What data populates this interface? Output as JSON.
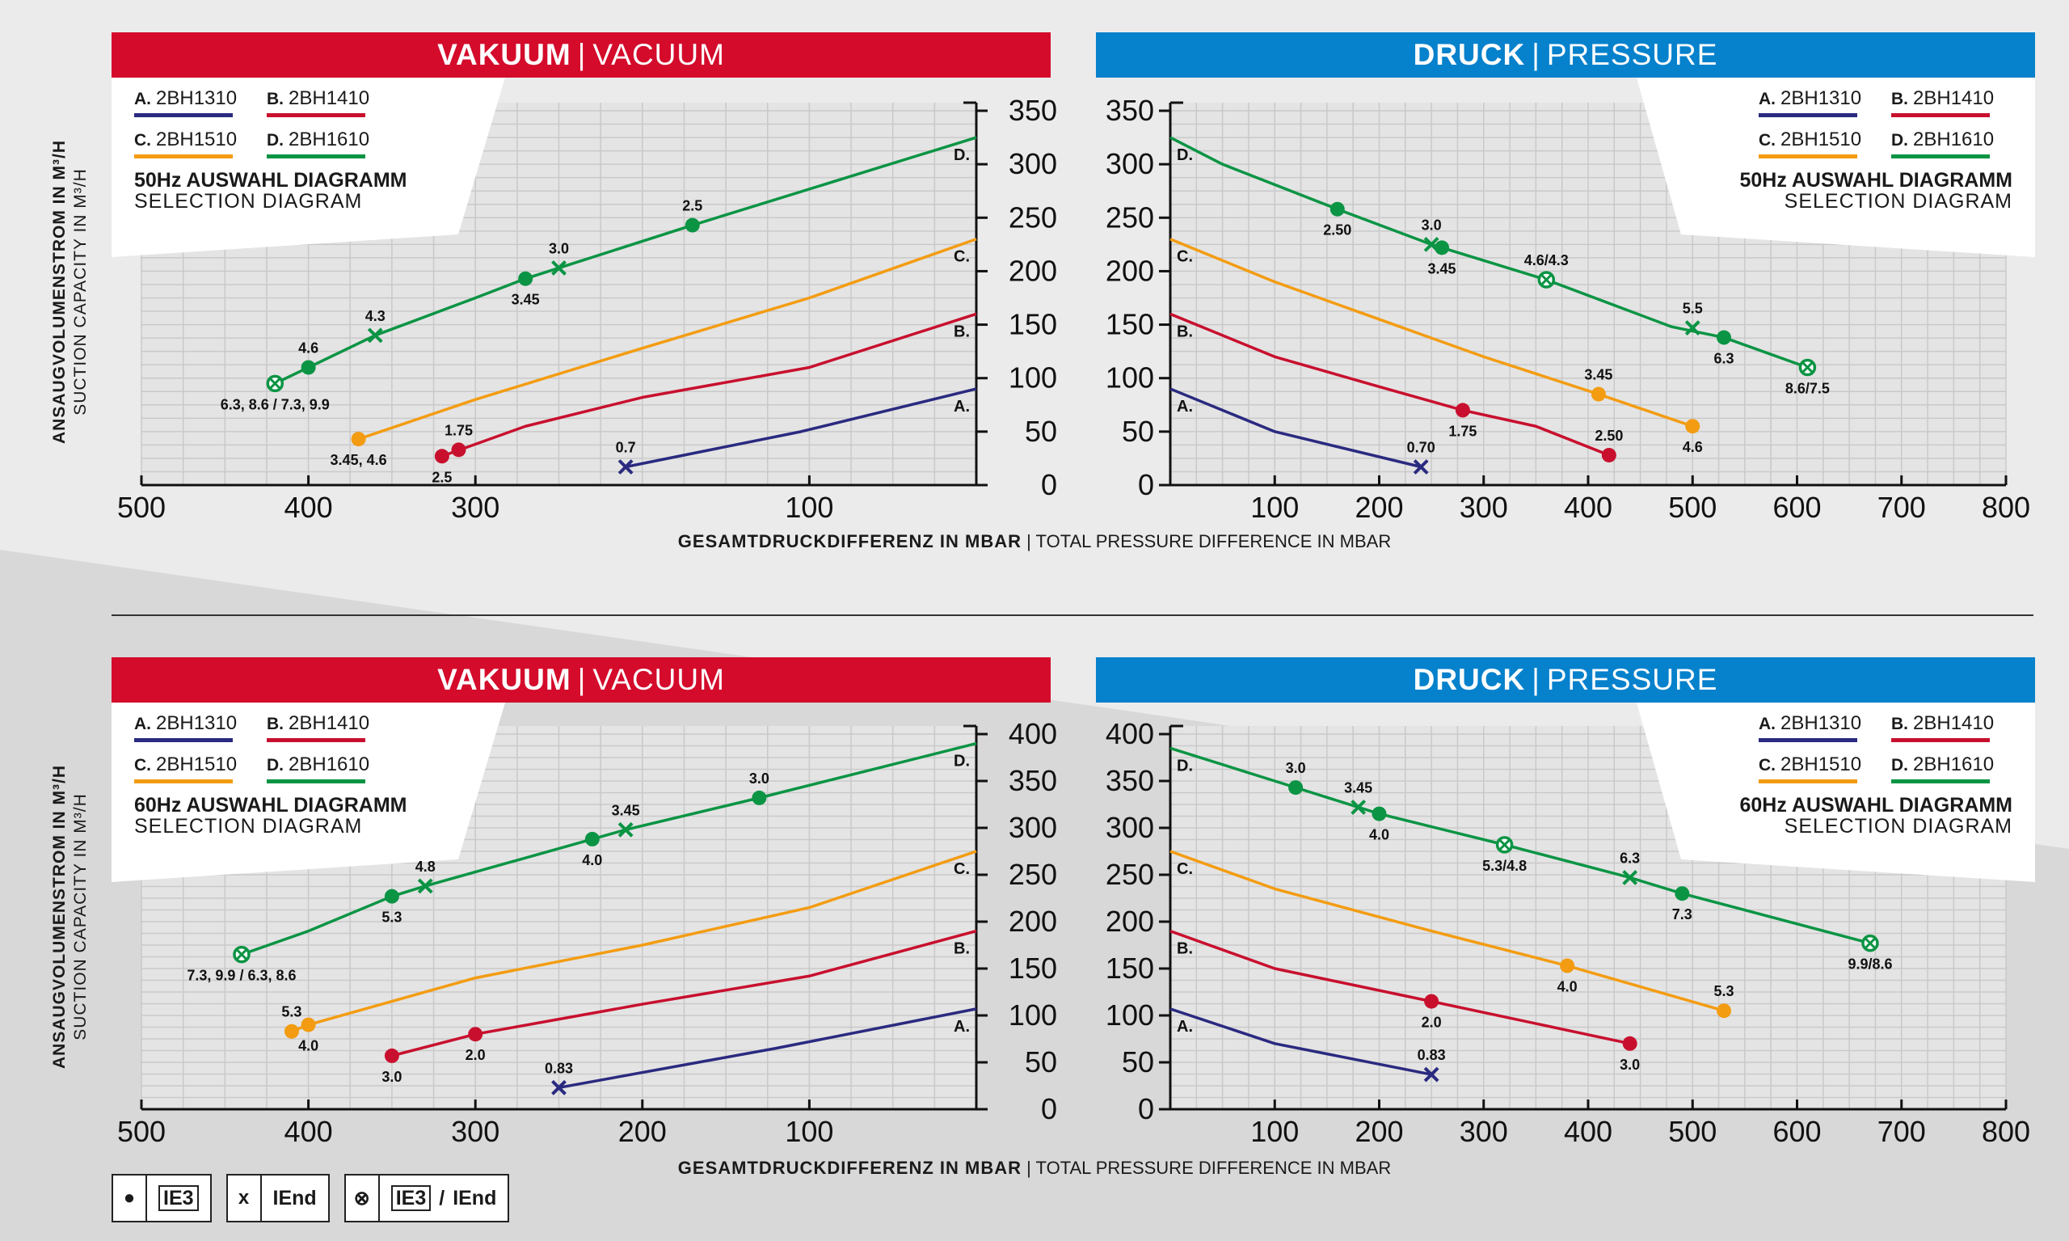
{
  "colors": {
    "A": "#2a2a80",
    "B": "#c8102e",
    "C": "#f39c12",
    "D": "#0b9444",
    "vacuum_header": "#d40b2b",
    "pressure_header": "#0681cc"
  },
  "vacuum_header": {
    "bold": "VAKUUM",
    "sep": "|",
    "en": "VACUUM"
  },
  "pressure_header": {
    "bold": "DRUCK",
    "sep": "|",
    "en": "PRESSURE"
  },
  "legend": {
    "items": [
      {
        "letter": "A.",
        "name": "2BH1310"
      },
      {
        "letter": "B.",
        "name": "2BH1410"
      },
      {
        "letter": "C.",
        "name": "2BH1510"
      },
      {
        "letter": "D.",
        "name": "2BH1610"
      }
    ],
    "title_50": "50Hz AUSWAHL DIAGRAMM",
    "title_60": "60Hz AUSWAHL DIAGRAMM",
    "subtitle": "SELECTION DIAGRAM"
  },
  "y_axis_label": {
    "de": "ANSAUGVOLUMENSTROM IN M³/H",
    "en": "SUCTION CAPACITY IN M³/H"
  },
  "x_axis_label": {
    "de": "GESAMTDRUCKDIFFERENZ IN MBAR",
    "sep": "|",
    "en": "TOTAL PRESSURE DIFFERENCE IN MBAR"
  },
  "key": {
    "dot_symbol": "●",
    "dot_label": "IE3",
    "x_symbol": "x",
    "x_label": "IEnd",
    "both_symbol": "⊗",
    "both_label_1": "IE3",
    "both_sep": "/",
    "both_label_2": "IEnd"
  },
  "chart_data": [
    {
      "id": "vac50",
      "type": "line",
      "title": "VAKUUM | VACUUM – 50Hz",
      "xlabel": "GESAMTDRUCKDIFFERENZ IN MBAR",
      "ylabel": "ANSAUGVOLUMENSTROM IN M³/H",
      "xlim": [
        500,
        0
      ],
      "ylim": [
        0,
        350
      ],
      "x_ticks": [
        500,
        400,
        300,
        100
      ],
      "y_ticks": [
        0,
        50,
        100,
        150,
        200,
        250,
        300,
        350
      ],
      "series": [
        {
          "name": "A. 2BH1310",
          "key": "A",
          "x": [
            210,
            105,
            0
          ],
          "y": [
            17,
            50,
            90
          ],
          "end_label": "A."
        },
        {
          "name": "B. 2BH1410",
          "key": "B",
          "x": [
            320,
            270,
            200,
            100,
            0
          ],
          "y": [
            27,
            55,
            82,
            110,
            160
          ],
          "end_label": "B."
        },
        {
          "name": "C. 2BH1510",
          "key": "C",
          "x": [
            370,
            300,
            200,
            100,
            0
          ],
          "y": [
            43,
            80,
            128,
            175,
            230
          ],
          "end_label": "C."
        },
        {
          "name": "D. 2BH1610",
          "key": "D",
          "x": [
            420,
            400,
            360,
            300,
            270,
            250,
            170,
            0
          ],
          "y": [
            95,
            110,
            140,
            175,
            193,
            203,
            243,
            325
          ],
          "end_label": "D."
        }
      ],
      "markers": [
        {
          "series": "A",
          "x": 210,
          "y": 17,
          "kind": "x",
          "label": "0.7",
          "pos": "above"
        },
        {
          "series": "B",
          "x": 310,
          "y": 33,
          "kind": "dot",
          "label": "1.75",
          "pos": "above"
        },
        {
          "series": "B",
          "x": 320,
          "y": 27,
          "kind": "dot",
          "label": "2.5",
          "pos": "below"
        },
        {
          "series": "C",
          "x": 370,
          "y": 43,
          "kind": "dot",
          "label": "3.45, 4.6",
          "pos": "below"
        },
        {
          "series": "D",
          "x": 420,
          "y": 95,
          "kind": "both",
          "label": "6.3, 8.6 / 7.3, 9.9",
          "pos": "below"
        },
        {
          "series": "D",
          "x": 400,
          "y": 110,
          "kind": "dot",
          "label": "4.6",
          "pos": "above"
        },
        {
          "series": "D",
          "x": 360,
          "y": 140,
          "kind": "x",
          "label": "4.3",
          "pos": "above"
        },
        {
          "series": "D",
          "x": 270,
          "y": 193,
          "kind": "dot",
          "label": "3.45",
          "pos": "below"
        },
        {
          "series": "D",
          "x": 250,
          "y": 203,
          "kind": "x",
          "label": "3.0",
          "pos": "above"
        },
        {
          "series": "D",
          "x": 170,
          "y": 243,
          "kind": "dot",
          "label": "2.5",
          "pos": "above"
        }
      ]
    },
    {
      "id": "pr50",
      "type": "line",
      "title": "DRUCK | PRESSURE – 50Hz",
      "xlabel": "GESAMTDRUCKDIFFERENZ IN MBAR",
      "ylabel": "ANSAUGVOLUMENSTROM IN M³/H",
      "xlim": [
        0,
        800
      ],
      "ylim": [
        0,
        350
      ],
      "x_ticks": [
        100,
        200,
        300,
        400,
        500,
        600,
        700,
        800
      ],
      "y_ticks": [
        0,
        50,
        100,
        150,
        200,
        250,
        300,
        350
      ],
      "series": [
        {
          "name": "A. 2BH1310",
          "key": "A",
          "x": [
            0,
            100,
            240
          ],
          "y": [
            90,
            50,
            17
          ],
          "end_label": "A."
        },
        {
          "name": "B. 2BH1410",
          "key": "B",
          "x": [
            0,
            100,
            200,
            280,
            350,
            420
          ],
          "y": [
            160,
            120,
            92,
            70,
            55,
            28
          ],
          "end_label": "B."
        },
        {
          "name": "C. 2BH1510",
          "key": "C",
          "x": [
            0,
            100,
            200,
            300,
            410,
            500
          ],
          "y": [
            230,
            190,
            155,
            120,
            85,
            55
          ],
          "end_label": "C."
        },
        {
          "name": "D. 2BH1610",
          "key": "D",
          "x": [
            0,
            50,
            160,
            250,
            260,
            360,
            480,
            530,
            610
          ],
          "y": [
            325,
            300,
            258,
            225,
            222,
            192,
            148,
            138,
            110
          ],
          "end_label": "D."
        }
      ],
      "markers": [
        {
          "series": "A",
          "x": 240,
          "y": 17,
          "kind": "x",
          "label": "0.70",
          "pos": "above"
        },
        {
          "series": "B",
          "x": 280,
          "y": 70,
          "kind": "dot",
          "label": "1.75",
          "pos": "below"
        },
        {
          "series": "B",
          "x": 420,
          "y": 28,
          "kind": "dot",
          "label": "2.50",
          "pos": "above"
        },
        {
          "series": "C",
          "x": 410,
          "y": 85,
          "kind": "dot",
          "label": "3.45",
          "pos": "above"
        },
        {
          "series": "C",
          "x": 500,
          "y": 55,
          "kind": "dot",
          "label": "4.6",
          "pos": "below"
        },
        {
          "series": "D",
          "x": 160,
          "y": 258,
          "kind": "dot",
          "label": "2.50",
          "pos": "below"
        },
        {
          "series": "D",
          "x": 250,
          "y": 225,
          "kind": "x",
          "label": "3.0",
          "pos": "above"
        },
        {
          "series": "D",
          "x": 260,
          "y": 222,
          "kind": "dot",
          "label": "3.45",
          "pos": "below"
        },
        {
          "series": "D",
          "x": 360,
          "y": 192,
          "kind": "both",
          "label": "4.6/4.3",
          "pos": "above"
        },
        {
          "series": "D",
          "x": 500,
          "y": 147,
          "kind": "x",
          "label": "5.5",
          "pos": "above"
        },
        {
          "series": "D",
          "x": 530,
          "y": 138,
          "kind": "dot",
          "label": "6.3",
          "pos": "below"
        },
        {
          "series": "D",
          "x": 610,
          "y": 110,
          "kind": "both",
          "label": "8.6/7.5",
          "pos": "below"
        }
      ]
    },
    {
      "id": "vac60",
      "type": "line",
      "title": "VAKUUM | VACUUM – 60Hz",
      "xlabel": "GESAMTDRUCKDIFFERENZ IN MBAR",
      "ylabel": "ANSAUGVOLUMENSTROM IN M³/H",
      "xlim": [
        500,
        0
      ],
      "ylim": [
        0,
        400
      ],
      "x_ticks": [
        500,
        400,
        300,
        200,
        100
      ],
      "y_ticks": [
        0,
        50,
        100,
        150,
        200,
        250,
        300,
        350,
        400
      ],
      "series": [
        {
          "name": "A. 2BH1310",
          "key": "A",
          "x": [
            250,
            120,
            0
          ],
          "y": [
            23,
            65,
            107
          ],
          "end_label": "A."
        },
        {
          "name": "B. 2BH1410",
          "key": "B",
          "x": [
            350,
            300,
            200,
            100,
            0
          ],
          "y": [
            57,
            80,
            112,
            142,
            190
          ],
          "end_label": "B."
        },
        {
          "name": "C. 2BH1510",
          "key": "C",
          "x": [
            410,
            400,
            300,
            200,
            100,
            0
          ],
          "y": [
            83,
            90,
            140,
            175,
            215,
            275
          ],
          "end_label": "C."
        },
        {
          "name": "D. 2BH1610",
          "key": "D",
          "x": [
            440,
            400,
            350,
            330,
            230,
            210,
            130,
            0
          ],
          "y": [
            165,
            190,
            227,
            238,
            288,
            298,
            332,
            390
          ],
          "end_label": "D."
        }
      ],
      "markers": [
        {
          "series": "A",
          "x": 250,
          "y": 23,
          "kind": "x",
          "label": "0.83",
          "pos": "above"
        },
        {
          "series": "B",
          "x": 350,
          "y": 57,
          "kind": "dot",
          "label": "3.0",
          "pos": "below"
        },
        {
          "series": "B",
          "x": 300,
          "y": 80,
          "kind": "dot",
          "label": "2.0",
          "pos": "below"
        },
        {
          "series": "C",
          "x": 410,
          "y": 83,
          "kind": "dot",
          "label": "5.3",
          "pos": "above"
        },
        {
          "series": "C",
          "x": 400,
          "y": 90,
          "kind": "dot",
          "label": "4.0",
          "pos": "below"
        },
        {
          "series": "D",
          "x": 440,
          "y": 165,
          "kind": "both",
          "label": "7.3, 9.9 / 6.3, 8.6",
          "pos": "below"
        },
        {
          "series": "D",
          "x": 350,
          "y": 227,
          "kind": "dot",
          "label": "5.3",
          "pos": "below"
        },
        {
          "series": "D",
          "x": 330,
          "y": 238,
          "kind": "x",
          "label": "4.8",
          "pos": "above"
        },
        {
          "series": "D",
          "x": 230,
          "y": 288,
          "kind": "dot",
          "label": "4.0",
          "pos": "below"
        },
        {
          "series": "D",
          "x": 210,
          "y": 298,
          "kind": "x",
          "label": "3.45",
          "pos": "above"
        },
        {
          "series": "D",
          "x": 130,
          "y": 332,
          "kind": "dot",
          "label": "3.0",
          "pos": "above"
        }
      ]
    },
    {
      "id": "pr60",
      "type": "line",
      "title": "DRUCK | PRESSURE – 60Hz",
      "xlabel": "GESAMTDRUCKDIFFERENZ IN MBAR",
      "ylabel": "ANSAUGVOLUMENSTROM IN M³/H",
      "xlim": [
        0,
        800
      ],
      "ylim": [
        0,
        400
      ],
      "x_ticks": [
        100,
        200,
        300,
        400,
        500,
        600,
        700,
        800
      ],
      "y_ticks": [
        0,
        50,
        100,
        150,
        200,
        250,
        300,
        350,
        400
      ],
      "series": [
        {
          "name": "A. 2BH1310",
          "key": "A",
          "x": [
            0,
            100,
            250
          ],
          "y": [
            107,
            70,
            37
          ],
          "end_label": "A."
        },
        {
          "name": "B. 2BH1410",
          "key": "B",
          "x": [
            0,
            100,
            250,
            440
          ],
          "y": [
            190,
            150,
            115,
            70
          ],
          "end_label": "B."
        },
        {
          "name": "C. 2BH1510",
          "key": "C",
          "x": [
            0,
            100,
            250,
            380,
            530
          ],
          "y": [
            275,
            235,
            190,
            153,
            105
          ],
          "end_label": "C."
        },
        {
          "name": "D. 2BH1610",
          "key": "D",
          "x": [
            0,
            120,
            180,
            200,
            320,
            440,
            490,
            670
          ],
          "y": [
            385,
            343,
            322,
            315,
            282,
            247,
            230,
            177
          ],
          "end_label": "D."
        }
      ],
      "markers": [
        {
          "series": "A",
          "x": 250,
          "y": 37,
          "kind": "x",
          "label": "0.83",
          "pos": "above"
        },
        {
          "series": "B",
          "x": 250,
          "y": 115,
          "kind": "dot",
          "label": "2.0",
          "pos": "below"
        },
        {
          "series": "B",
          "x": 440,
          "y": 70,
          "kind": "dot",
          "label": "3.0",
          "pos": "below"
        },
        {
          "series": "C",
          "x": 380,
          "y": 153,
          "kind": "dot",
          "label": "4.0",
          "pos": "below"
        },
        {
          "series": "C",
          "x": 530,
          "y": 105,
          "kind": "dot",
          "label": "5.3",
          "pos": "above"
        },
        {
          "series": "D",
          "x": 120,
          "y": 343,
          "kind": "dot",
          "label": "3.0",
          "pos": "above"
        },
        {
          "series": "D",
          "x": 180,
          "y": 322,
          "kind": "x",
          "label": "3.45",
          "pos": "above"
        },
        {
          "series": "D",
          "x": 200,
          "y": 315,
          "kind": "dot",
          "label": "4.0",
          "pos": "below"
        },
        {
          "series": "D",
          "x": 320,
          "y": 282,
          "kind": "both",
          "label": "5.3/4.8",
          "pos": "below"
        },
        {
          "series": "D",
          "x": 440,
          "y": 247,
          "kind": "x",
          "label": "6.3",
          "pos": "above"
        },
        {
          "series": "D",
          "x": 490,
          "y": 230,
          "kind": "dot",
          "label": "7.3",
          "pos": "below"
        },
        {
          "series": "D",
          "x": 670,
          "y": 177,
          "kind": "both",
          "label": "9.9/8.6",
          "pos": "below"
        }
      ]
    }
  ]
}
